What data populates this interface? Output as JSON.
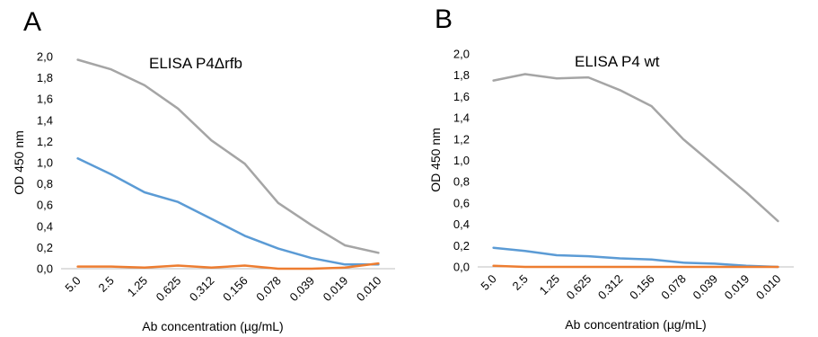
{
  "chart_data": [
    {
      "type": "line",
      "panel_label": "A",
      "title": "ELISA P4Δrfb",
      "xlabel": "Ab concentration (µg/mL)",
      "ylabel": "OD 450 nm",
      "categories": [
        "5.0",
        "2.5",
        "1.25",
        "0.625",
        "0.312",
        "0.156",
        "0.078",
        "0.039",
        "0.019",
        "0.010"
      ],
      "y_ticks": [
        "0,0",
        "0,2",
        "0,4",
        "0,6",
        "0,8",
        "1,0",
        "1,2",
        "1,4",
        "1,6",
        "1,8",
        "2,0"
      ],
      "ylim": [
        0,
        2.0
      ],
      "grid": false,
      "series": [
        {
          "color": "#a5a5a5",
          "values": [
            1.97,
            1.88,
            1.73,
            1.51,
            1.21,
            0.99,
            0.62,
            0.41,
            0.22,
            0.15
          ]
        },
        {
          "color": "#5b9bd5",
          "values": [
            1.04,
            0.89,
            0.72,
            0.63,
            0.47,
            0.31,
            0.19,
            0.1,
            0.04,
            0.04
          ]
        },
        {
          "color": "#ed7d31",
          "values": [
            0.02,
            0.02,
            0.01,
            0.03,
            0.01,
            0.03,
            0.0,
            0.0,
            0.01,
            0.05
          ]
        }
      ]
    },
    {
      "type": "line",
      "panel_label": "B",
      "title": "ELISA P4 wt",
      "xlabel": "Ab concentration (µg/mL)",
      "ylabel": "OD 450 nm",
      "categories": [
        "5.0",
        "2.5",
        "1.25",
        "0.625",
        "0.312",
        "0.156",
        "0.078",
        "0.039",
        "0.019",
        "0.010"
      ],
      "y_ticks": [
        "0,0",
        "0,2",
        "0,4",
        "0,6",
        "0,8",
        "1,0",
        "1,2",
        "1,4",
        "1,6",
        "1,8",
        "2,0"
      ],
      "ylim": [
        0,
        2.0
      ],
      "grid": false,
      "series": [
        {
          "color": "#a5a5a5",
          "values": [
            1.75,
            1.81,
            1.77,
            1.78,
            1.66,
            1.51,
            1.2,
            0.95,
            0.7,
            0.43
          ]
        },
        {
          "color": "#5b9bd5",
          "values": [
            0.18,
            0.15,
            0.11,
            0.1,
            0.08,
            0.07,
            0.04,
            0.03,
            0.01,
            0.0
          ]
        },
        {
          "color": "#ed7d31",
          "values": [
            0.01,
            0.0,
            0.0,
            0.0,
            0.0,
            0.0,
            0.0,
            0.0,
            0.0,
            0.0
          ]
        }
      ]
    }
  ]
}
